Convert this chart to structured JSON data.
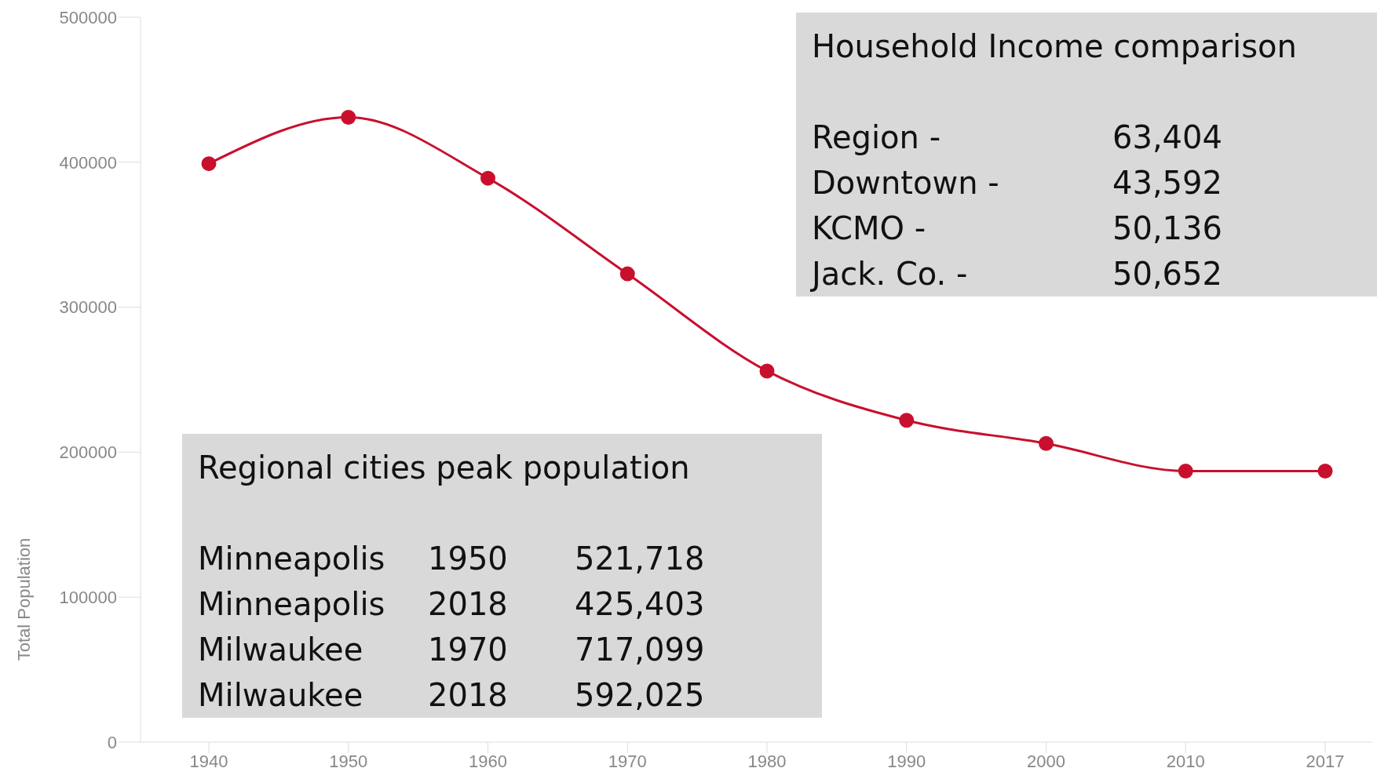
{
  "chart_data": {
    "type": "line",
    "ylabel": "Total Population",
    "categories": [
      "1940",
      "1950",
      "1960",
      "1970",
      "1980",
      "1990",
      "2000",
      "2010",
      "2017"
    ],
    "series": [
      {
        "color": "#c8102e",
        "values": [
          399000,
          431000,
          389000,
          323000,
          256000,
          222000,
          206000,
          187000,
          187000
        ]
      }
    ],
    "ylim": [
      0,
      500000
    ],
    "yticks": [
      0,
      100000,
      200000,
      300000,
      400000,
      500000
    ],
    "marker": "circle",
    "line_style": "solid",
    "annotations": [
      "Household Income comparison\n\nRegion -\t63,404\nDowntown -\t43,592\nKCMO -\t50,136\nJack. Co. -\t50,652",
      "Regional cities peak population\n\nMinneapolis\t1950\t521,718\nMinneapolis\t2018\t425,403\nMilwaukee\t1970\t717,099\nMilwaukee\t2018\t592,025"
    ]
  }
}
